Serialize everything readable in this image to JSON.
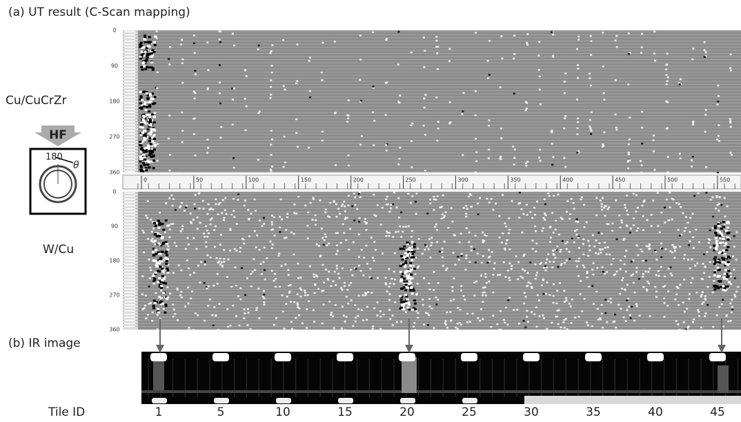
{
  "panel_a": {
    "title": "(a) UT result (C-Scan mapping)",
    "labels": [
      "Cu/CuCrZr",
      "W/Cu"
    ],
    "angle_ticks": [
      0,
      90,
      180,
      270,
      360
    ],
    "position_ticks": [
      0,
      50,
      100,
      150,
      200,
      250,
      300,
      350,
      400,
      450,
      500,
      550
    ]
  },
  "inset": {
    "label": "HF",
    "angle": "180",
    "symbol": "θ"
  },
  "panel_b": {
    "title": "(b) IR image",
    "tile_label": "Tile ID",
    "tile_ids": [
      1,
      5,
      10,
      15,
      20,
      25,
      30,
      35,
      40,
      45
    ]
  }
}
